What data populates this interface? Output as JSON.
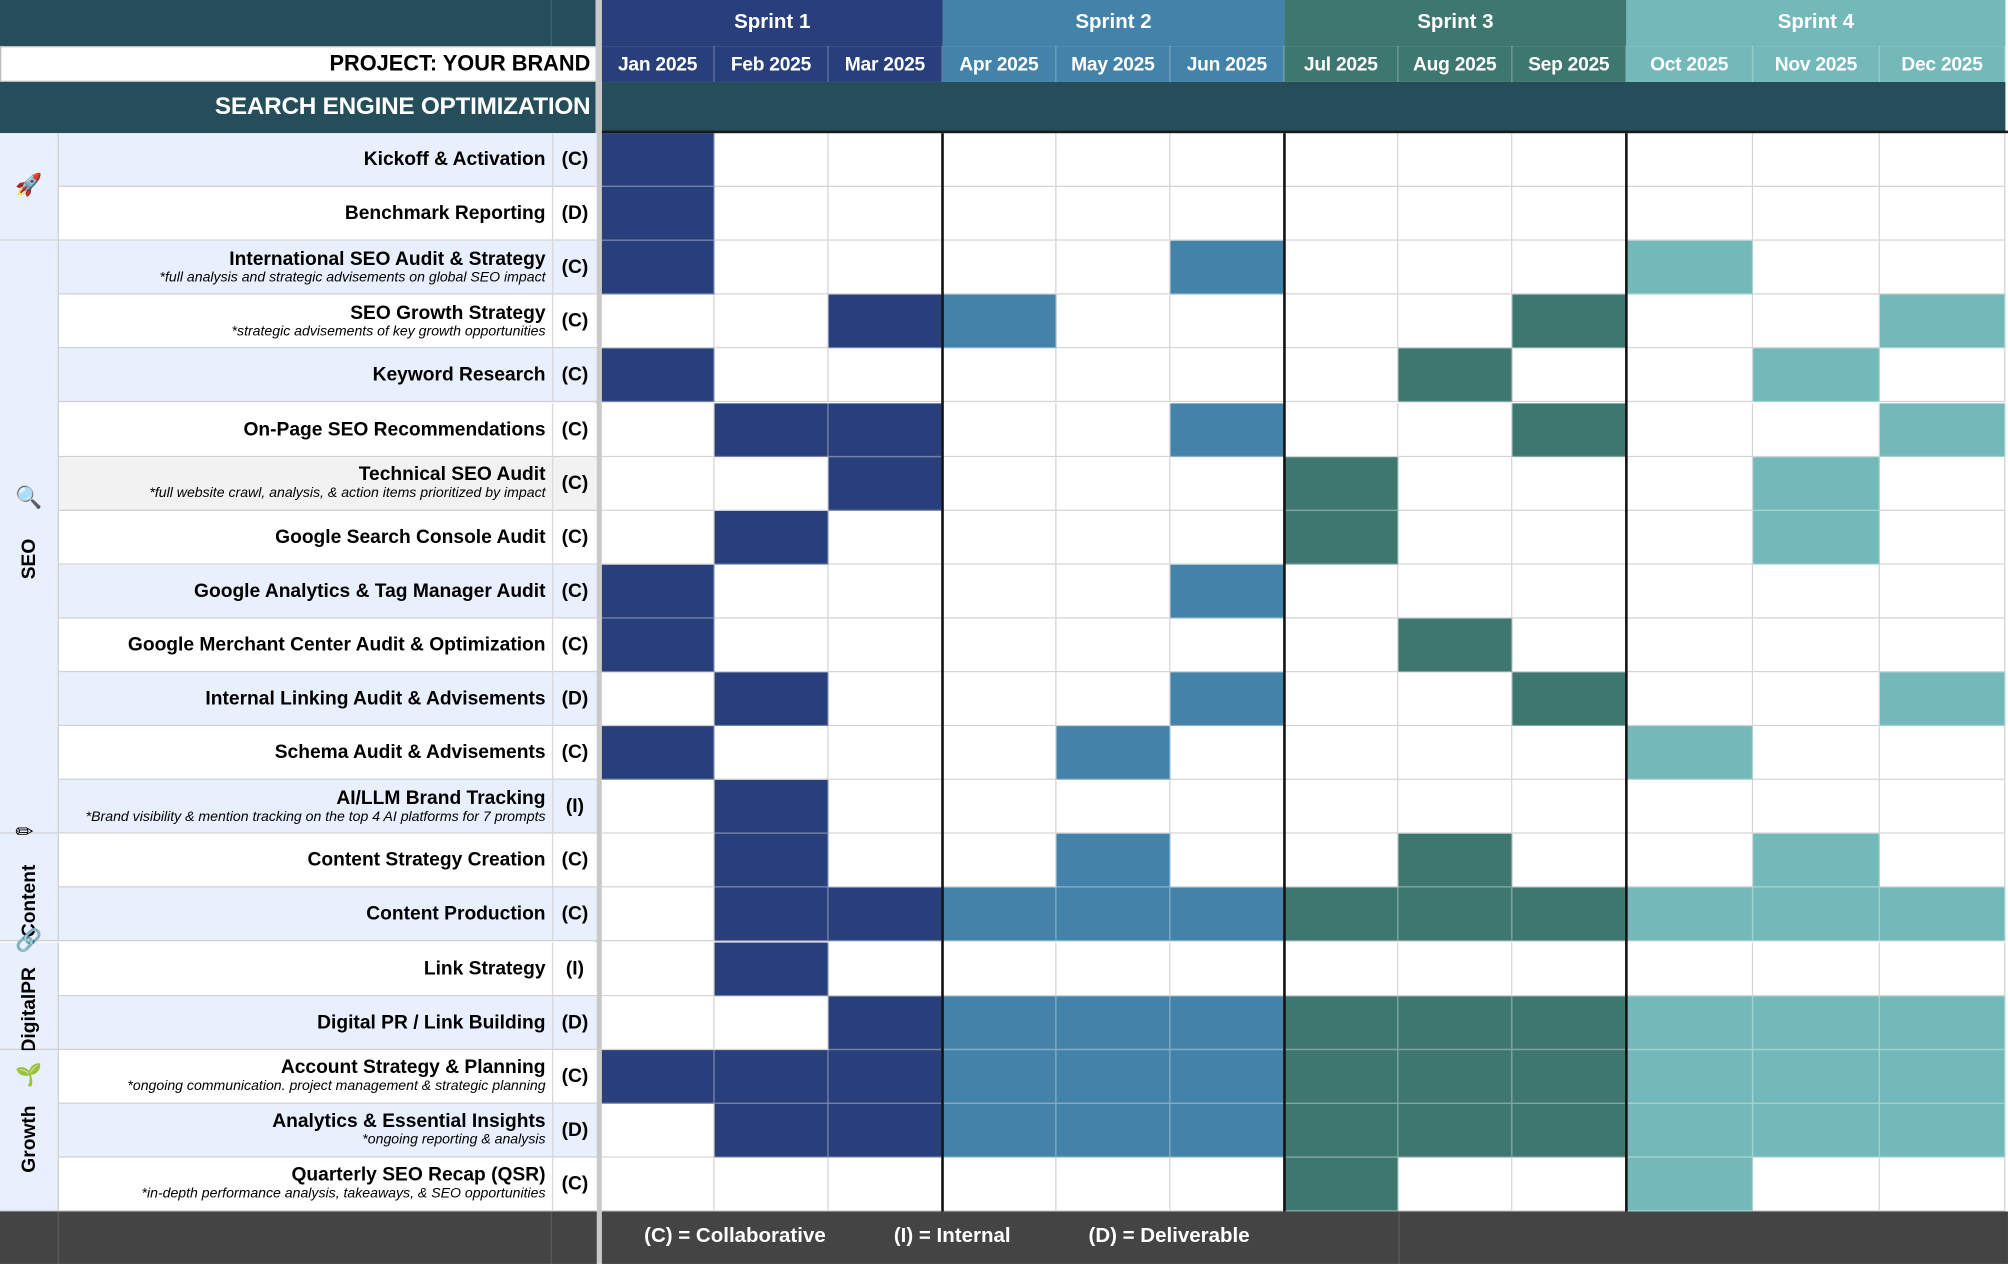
{
  "project_title": "PROJECT: YOUR BRAND",
  "section_title": "SEARCH ENGINE OPTIMIZATION",
  "colors": {
    "header_dark": "#254e5a",
    "sprint1": "#293f7c",
    "sprint2": "#4383a9",
    "sprint3": "#3e7770",
    "sprint4": "#73b9b9",
    "row_alt": "#e8effd",
    "row_gray": "#f2f2f2",
    "footer": "#444444"
  },
  "sprints": [
    {
      "label": "Sprint 1",
      "color": "#293f7c",
      "months": [
        "Jan 2025",
        "Feb 2025",
        "Mar 2025"
      ]
    },
    {
      "label": "Sprint 2",
      "color": "#4383a9",
      "months": [
        "Apr 2025",
        "May 2025",
        "Jun 2025"
      ]
    },
    {
      "label": "Sprint 3",
      "color": "#3e7770",
      "months": [
        "Jul 2025",
        "Aug 2025",
        "Sep 2025"
      ]
    },
    {
      "label": "Sprint 4",
      "color": "#73b9b9",
      "months": [
        "Oct 2025",
        "Nov 2025",
        "Dec 2025"
      ]
    }
  ],
  "categories": [
    {
      "label": "",
      "icon": "rocket-icon",
      "glyph": "🚀",
      "rows": [
        0,
        1
      ]
    },
    {
      "label": "SEO",
      "icon": "magnifier-icon",
      "glyph": "🔍",
      "rows": [
        2,
        12
      ]
    },
    {
      "label": "Content",
      "icon": "pencil-icon",
      "glyph": "✏",
      "rows": [
        13,
        14
      ]
    },
    {
      "label": "DigitalPR",
      "icon": "link-icon",
      "glyph": "🔗",
      "rows": [
        15,
        16
      ]
    },
    {
      "label": "Growth",
      "icon": "seedling-icon",
      "glyph": "🌱",
      "rows": [
        17,
        19
      ]
    }
  ],
  "tasks": [
    {
      "name": "Kickoff & Activation",
      "note": "",
      "type": "(C)",
      "months": [
        0
      ]
    },
    {
      "name": "Benchmark Reporting",
      "note": "",
      "type": "(D)",
      "months": [
        0
      ]
    },
    {
      "name": "International SEO Audit & Strategy",
      "note": "*full analysis and strategic advisements on global SEO impact",
      "type": "(C)",
      "months": [
        0,
        5,
        9
      ]
    },
    {
      "name": "SEO Growth Strategy",
      "note": "*strategic advisements of key growth opportunities",
      "type": "(C)",
      "months": [
        2,
        3,
        8,
        11
      ]
    },
    {
      "name": "Keyword Research",
      "note": "",
      "type": "(C)",
      "months": [
        0,
        7,
        10
      ]
    },
    {
      "name": "On-Page SEO Recommendations",
      "note": "",
      "type": "(C)",
      "months": [
        1,
        2,
        5,
        8,
        11
      ]
    },
    {
      "name": "Technical SEO Audit",
      "note": "*full website crawl, analysis, & action items prioritized by impact",
      "type": "(C)",
      "months": [
        2,
        6,
        10
      ]
    },
    {
      "name": "Google Search Console Audit",
      "note": "",
      "type": "(C)",
      "months": [
        1,
        6,
        10
      ]
    },
    {
      "name": "Google Analytics & Tag Manager Audit",
      "note": "",
      "type": "(C)",
      "months": [
        0,
        5
      ]
    },
    {
      "name": "Google Merchant Center Audit & Optimization",
      "note": "",
      "type": "(C)",
      "months": [
        0,
        7
      ]
    },
    {
      "name": "Internal Linking Audit & Advisements",
      "note": "",
      "type": "(D)",
      "months": [
        1,
        5,
        8,
        11
      ]
    },
    {
      "name": "Schema Audit & Advisements",
      "note": "",
      "type": "(C)",
      "months": [
        0,
        4,
        9
      ]
    },
    {
      "name": "AI/LLM Brand Tracking",
      "note": "*Brand visibility & mention tracking on the top 4 AI platforms for 7 prompts",
      "type": "(I)",
      "months": [
        1
      ]
    },
    {
      "name": "Content Strategy Creation",
      "note": "",
      "type": "(C)",
      "months": [
        1,
        4,
        7,
        10
      ]
    },
    {
      "name": "Content Production",
      "note": "",
      "type": "(C)",
      "months": [
        1,
        2,
        3,
        4,
        5,
        6,
        7,
        8,
        9,
        10,
        11
      ]
    },
    {
      "name": "Link Strategy",
      "note": "",
      "type": "(I)",
      "months": [
        1
      ]
    },
    {
      "name": "Digital PR / Link Building",
      "note": "",
      "type": "(D)",
      "months": [
        2,
        3,
        4,
        5,
        6,
        7,
        8,
        9,
        10,
        11
      ]
    },
    {
      "name": "Account Strategy & Planning",
      "note": "*ongoing communication. project management & strategic planning",
      "type": "(C)",
      "months": [
        0,
        1,
        2,
        3,
        4,
        5,
        6,
        7,
        8,
        9,
        10,
        11
      ]
    },
    {
      "name": "Analytics & Essential Insights",
      "note": "*ongoing reporting & analysis",
      "type": "(D)",
      "months": [
        1,
        2,
        3,
        4,
        5,
        6,
        7,
        8,
        9,
        10,
        11
      ]
    },
    {
      "name": "Quarterly SEO Recap (QSR)",
      "note": "*in-depth performance analysis, takeaways, & SEO opportunities",
      "type": "(C)",
      "months": [
        6,
        9
      ]
    }
  ],
  "legend": {
    "collaborative": "(C) = Collaborative",
    "internal": "(I) = Internal",
    "deliverable": "(D) = Deliverable"
  }
}
